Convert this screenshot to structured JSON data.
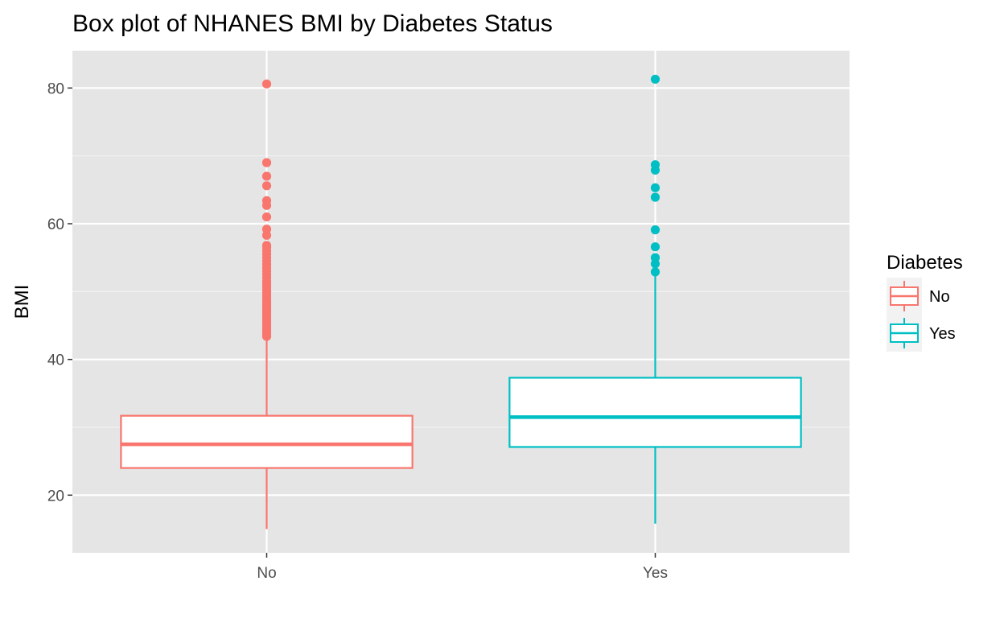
{
  "chart_data": {
    "type": "boxplot",
    "title": "Box plot of NHANES BMI by Diabetes Status",
    "xlabel": "",
    "ylabel": "BMI",
    "ylim": [
      11.5,
      85.5
    ],
    "yticks": [
      20,
      40,
      60,
      80
    ],
    "yticks_minor": [
      30,
      50,
      70
    ],
    "categories": [
      "No",
      "Yes"
    ],
    "grid": true,
    "legend": {
      "title": "Diabetes",
      "placement": "right",
      "entries": [
        "No",
        "Yes"
      ]
    },
    "colors": {
      "No": "#F8766D",
      "Yes": "#00BFC4"
    },
    "series": [
      {
        "category": "No",
        "whisker_low": 15.0,
        "q1": 24.0,
        "median": 27.5,
        "q3": 31.7,
        "whisker_high": 43.2,
        "outliers": [
          43.4,
          43.7,
          44.0,
          44.3,
          44.6,
          44.9,
          45.2,
          45.5,
          45.8,
          46.1,
          46.4,
          46.7,
          47.0,
          47.3,
          47.6,
          47.9,
          48.2,
          48.5,
          48.8,
          49.1,
          49.5,
          49.9,
          50.3,
          50.7,
          51.1,
          51.5,
          52.0,
          52.5,
          53.0,
          53.5,
          54.0,
          54.5,
          55.0,
          55.5,
          56.0,
          56.5,
          56.8,
          58.3,
          59.2,
          61.0,
          62.7,
          63.4,
          65.6,
          67.0,
          69.0,
          80.6
        ]
      },
      {
        "category": "Yes",
        "whisker_low": 15.8,
        "q1": 27.1,
        "median": 31.5,
        "q3": 37.3,
        "whisker_high": 52.8,
        "outliers": [
          52.9,
          54.1,
          55.0,
          56.6,
          59.1,
          63.9,
          65.3,
          67.9,
          68.7,
          81.3
        ]
      }
    ]
  }
}
